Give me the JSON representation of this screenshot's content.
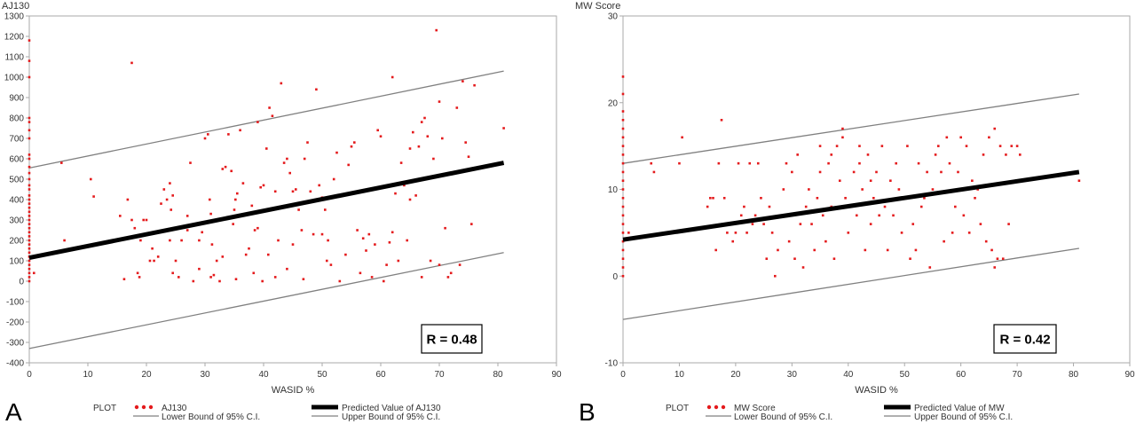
{
  "colors": {
    "points": "#e41a1c",
    "predicted": "#000000",
    "bounds": "#808080",
    "axis": "#aaaaaa",
    "text": "#333333"
  },
  "chart_data": [
    {
      "panel_label": "A",
      "type": "scatter",
      "ylabel": "AJ130",
      "xlabel": "WASID %",
      "xlim": [
        0,
        90
      ],
      "ylim": [
        -400,
        1300
      ],
      "xticks": [
        0,
        10,
        20,
        30,
        40,
        50,
        60,
        70,
        80,
        90
      ],
      "yticks": [
        -400,
        -300,
        -200,
        -100,
        0,
        100,
        200,
        300,
        400,
        500,
        600,
        700,
        800,
        900,
        1000,
        1100,
        1200,
        1300
      ],
      "r_label": "R = 0.48",
      "legend": {
        "header": "PLOT",
        "points": "AJ130",
        "predicted": "Predicted Value of AJ130",
        "lower": "Lower Bound of 95% C.I.",
        "upper": "Upper Bound of 95% C.I."
      },
      "predicted": {
        "x": [
          0,
          81
        ],
        "y": [
          115,
          580
        ]
      },
      "lower_bound": {
        "x": [
          0,
          81
        ],
        "y": [
          -330,
          140
        ]
      },
      "upper_bound": {
        "x": [
          0,
          81
        ],
        "y": [
          555,
          1030
        ]
      },
      "zero_x_values": [
        1180,
        1080,
        1000,
        800,
        780,
        740,
        700,
        620,
        600,
        560,
        530,
        500,
        470,
        450,
        420,
        400,
        380,
        360,
        340,
        320,
        300,
        280,
        260,
        240,
        220,
        200,
        180,
        160,
        140,
        120,
        100,
        80,
        60,
        40,
        20,
        0
      ],
      "points": [
        [
          0.8,
          40
        ],
        [
          5.5,
          580
        ],
        [
          6,
          200
        ],
        [
          10.5,
          500
        ],
        [
          11,
          415
        ],
        [
          15.5,
          320
        ],
        [
          16.2,
          10
        ],
        [
          16.8,
          400
        ],
        [
          17.5,
          1070
        ],
        [
          17.5,
          300
        ],
        [
          18,
          260
        ],
        [
          18.5,
          40
        ],
        [
          18.8,
          20
        ],
        [
          19,
          200
        ],
        [
          19.5,
          300
        ],
        [
          20,
          300
        ],
        [
          20.5,
          230
        ],
        [
          20.6,
          100
        ],
        [
          21,
          160
        ],
        [
          21.3,
          100
        ],
        [
          22,
          120
        ],
        [
          22.5,
          380
        ],
        [
          23,
          450
        ],
        [
          23.5,
          400
        ],
        [
          24,
          480
        ],
        [
          24.5,
          420
        ],
        [
          24.2,
          350
        ],
        [
          24,
          200
        ],
        [
          24.5,
          40
        ],
        [
          25,
          100
        ],
        [
          25.5,
          20
        ],
        [
          26,
          200
        ],
        [
          27,
          320
        ],
        [
          27.5,
          580
        ],
        [
          28,
          0
        ],
        [
          28.5,
          280
        ],
        [
          29,
          200
        ],
        [
          29.5,
          240
        ],
        [
          30,
          700
        ],
        [
          30.5,
          720
        ],
        [
          31,
          330
        ],
        [
          30.8,
          400
        ],
        [
          31.2,
          180
        ],
        [
          31,
          20
        ],
        [
          31.5,
          30
        ],
        [
          32,
          100
        ],
        [
          32.5,
          0
        ],
        [
          33,
          550
        ],
        [
          33.5,
          560
        ],
        [
          34,
          720
        ],
        [
          34.5,
          540
        ],
        [
          34.8,
          280
        ],
        [
          35,
          350
        ],
        [
          35.2,
          400
        ],
        [
          35.5,
          430
        ],
        [
          35.3,
          10
        ],
        [
          36,
          740
        ],
        [
          36.5,
          480
        ],
        [
          37,
          130
        ],
        [
          37.5,
          160
        ],
        [
          38,
          370
        ],
        [
          38.5,
          250
        ],
        [
          38.3,
          40
        ],
        [
          39,
          780
        ],
        [
          39.5,
          460
        ],
        [
          39.8,
          0
        ],
        [
          40,
          470
        ],
        [
          40.5,
          650
        ],
        [
          40.8,
          130
        ],
        [
          41,
          850
        ],
        [
          41.5,
          810
        ],
        [
          42,
          20
        ],
        [
          42.5,
          200
        ],
        [
          43,
          970
        ],
        [
          43.5,
          580
        ],
        [
          44,
          600
        ],
        [
          44.5,
          530
        ],
        [
          44,
          60
        ],
        [
          45,
          440
        ],
        [
          45.5,
          450
        ],
        [
          46,
          350
        ],
        [
          46.5,
          250
        ],
        [
          46.8,
          10
        ],
        [
          47,
          600
        ],
        [
          47.5,
          680
        ],
        [
          48,
          440
        ],
        [
          48.5,
          230
        ],
        [
          49,
          940
        ],
        [
          49.5,
          470
        ],
        [
          50,
          410
        ],
        [
          50.5,
          350
        ],
        [
          50.8,
          100
        ],
        [
          51,
          200
        ],
        [
          51.5,
          80
        ],
        [
          52,
          500
        ],
        [
          52.5,
          630
        ],
        [
          53,
          0
        ],
        [
          53.5,
          420
        ],
        [
          54,
          130
        ],
        [
          54.5,
          570
        ],
        [
          55,
          660
        ],
        [
          55.5,
          680
        ],
        [
          56,
          250
        ],
        [
          56.5,
          40
        ],
        [
          57,
          210
        ],
        [
          57.5,
          150
        ],
        [
          58,
          230
        ],
        [
          58.5,
          20
        ],
        [
          59,
          180
        ],
        [
          59.5,
          740
        ],
        [
          60,
          710
        ],
        [
          60.5,
          0
        ],
        [
          61,
          80
        ],
        [
          61.5,
          190
        ],
        [
          62,
          1000
        ],
        [
          62.5,
          430
        ],
        [
          63,
          100
        ],
        [
          63.5,
          580
        ],
        [
          64,
          470
        ],
        [
          64.5,
          200
        ],
        [
          65,
          650
        ],
        [
          65.5,
          730
        ],
        [
          66,
          420
        ],
        [
          66.5,
          660
        ],
        [
          67,
          780
        ],
        [
          67.5,
          800
        ],
        [
          68,
          710
        ],
        [
          68.5,
          100
        ],
        [
          69,
          600
        ],
        [
          69.5,
          1230
        ],
        [
          70,
          880
        ],
        [
          70.5,
          700
        ],
        [
          71,
          260
        ],
        [
          71.5,
          20
        ],
        [
          72,
          40
        ],
        [
          73,
          850
        ],
        [
          73.5,
          80
        ],
        [
          74,
          980
        ],
        [
          74.5,
          680
        ],
        [
          75,
          610
        ],
        [
          75.5,
          280
        ],
        [
          76,
          960
        ],
        [
          81,
          750
        ],
        [
          50,
          230
        ],
        [
          45,
          180
        ],
        [
          42,
          440
        ],
        [
          39,
          260
        ],
        [
          36,
          320
        ],
        [
          33,
          120
        ],
        [
          29,
          60
        ],
        [
          27,
          250
        ],
        [
          62,
          240
        ],
        [
          65,
          400
        ],
        [
          67,
          20
        ],
        [
          70,
          80
        ]
      ]
    },
    {
      "panel_label": "B",
      "type": "scatter",
      "ylabel": "MW Score",
      "xlabel": "WASID %",
      "xlim": [
        0,
        90
      ],
      "ylim": [
        -10,
        30
      ],
      "xticks": [
        0,
        10,
        20,
        30,
        40,
        50,
        60,
        70,
        80,
        90
      ],
      "yticks": [
        -10,
        0,
        10,
        20,
        30
      ],
      "r_label": "R = 0.42",
      "legend": {
        "header": "PLOT",
        "points": "MW Score",
        "predicted": "Predicted Value of MW",
        "lower": "Lower Bound of 95% C.I.",
        "upper": "Upper Bound of 95% C.I."
      },
      "predicted": {
        "x": [
          0,
          81
        ],
        "y": [
          4.2,
          12
        ]
      },
      "lower_bound": {
        "x": [
          0,
          81
        ],
        "y": [
          -5,
          3.2
        ]
      },
      "upper_bound": {
        "x": [
          0,
          81
        ],
        "y": [
          13,
          21
        ]
      },
      "zero_x_values": [
        23,
        21,
        19,
        18,
        17,
        16,
        15,
        14,
        13,
        12,
        11,
        10,
        9,
        8,
        7,
        6,
        5,
        4,
        3,
        2,
        1,
        0
      ],
      "points": [
        [
          1,
          5
        ],
        [
          5,
          13
        ],
        [
          5.5,
          12
        ],
        [
          10,
          13
        ],
        [
          10.5,
          16
        ],
        [
          15,
          8
        ],
        [
          15.5,
          9
        ],
        [
          16,
          9
        ],
        [
          16.5,
          3
        ],
        [
          17,
          13
        ],
        [
          17.5,
          18
        ],
        [
          18,
          9
        ],
        [
          18.5,
          5
        ],
        [
          19,
          6
        ],
        [
          19.5,
          4
        ],
        [
          20,
          5
        ],
        [
          20.5,
          13
        ],
        [
          21,
          7
        ],
        [
          21.5,
          8
        ],
        [
          22,
          5
        ],
        [
          22.5,
          13
        ],
        [
          23,
          6
        ],
        [
          23.5,
          7
        ],
        [
          24,
          13
        ],
        [
          24.5,
          9
        ],
        [
          25,
          6
        ],
        [
          25.5,
          2
        ],
        [
          26,
          8
        ],
        [
          26.5,
          5
        ],
        [
          27,
          0
        ],
        [
          27.5,
          3
        ],
        [
          28,
          7
        ],
        [
          28.5,
          10
        ],
        [
          29,
          13
        ],
        [
          29.5,
          4
        ],
        [
          30,
          12
        ],
        [
          30.5,
          2
        ],
        [
          31,
          14
        ],
        [
          31.5,
          6
        ],
        [
          32,
          1
        ],
        [
          32.5,
          8
        ],
        [
          33,
          10
        ],
        [
          33.5,
          6
        ],
        [
          34,
          3
        ],
        [
          34.5,
          9
        ],
        [
          35,
          12
        ],
        [
          35.5,
          7
        ],
        [
          36,
          4
        ],
        [
          36.5,
          13
        ],
        [
          37,
          8
        ],
        [
          37.5,
          2
        ],
        [
          38,
          15
        ],
        [
          38.5,
          11
        ],
        [
          39,
          17
        ],
        [
          39.5,
          9
        ],
        [
          40,
          5
        ],
        [
          40.5,
          8
        ],
        [
          41,
          12
        ],
        [
          41.5,
          7
        ],
        [
          42,
          13
        ],
        [
          42.5,
          10
        ],
        [
          43,
          3
        ],
        [
          43.5,
          14
        ],
        [
          44,
          6
        ],
        [
          44.5,
          9
        ],
        [
          45,
          12
        ],
        [
          45.5,
          7
        ],
        [
          46,
          15
        ],
        [
          46.5,
          8
        ],
        [
          47,
          3
        ],
        [
          47.5,
          11
        ],
        [
          48,
          7
        ],
        [
          48.5,
          13
        ],
        [
          49,
          10
        ],
        [
          49.5,
          5
        ],
        [
          50,
          9
        ],
        [
          50.5,
          15
        ],
        [
          51,
          2
        ],
        [
          51.5,
          6
        ],
        [
          52,
          3
        ],
        [
          52.5,
          13
        ],
        [
          53,
          8
        ],
        [
          53.5,
          9
        ],
        [
          54,
          12
        ],
        [
          54.5,
          1
        ],
        [
          55,
          10
        ],
        [
          55.5,
          14
        ],
        [
          56,
          15
        ],
        [
          56.5,
          12
        ],
        [
          57,
          4
        ],
        [
          57.5,
          16
        ],
        [
          58,
          13
        ],
        [
          58.5,
          5
        ],
        [
          59,
          8
        ],
        [
          59.5,
          12
        ],
        [
          60,
          16
        ],
        [
          60.5,
          7
        ],
        [
          61,
          15
        ],
        [
          61.5,
          5
        ],
        [
          62,
          11
        ],
        [
          62.5,
          9
        ],
        [
          63,
          10
        ],
        [
          63.5,
          6
        ],
        [
          64,
          14
        ],
        [
          64.5,
          4
        ],
        [
          65,
          16
        ],
        [
          65.5,
          3
        ],
        [
          66,
          17
        ],
        [
          66.5,
          2
        ],
        [
          67,
          15
        ],
        [
          67.5,
          2
        ],
        [
          68,
          14
        ],
        [
          68.5,
          6
        ],
        [
          69,
          15
        ],
        [
          70,
          15
        ],
        [
          70.5,
          14
        ],
        [
          81,
          11
        ],
        [
          66,
          1
        ],
        [
          39,
          16
        ],
        [
          42,
          15
        ],
        [
          44,
          11
        ],
        [
          37,
          14
        ],
        [
          35,
          15
        ]
      ]
    }
  ]
}
